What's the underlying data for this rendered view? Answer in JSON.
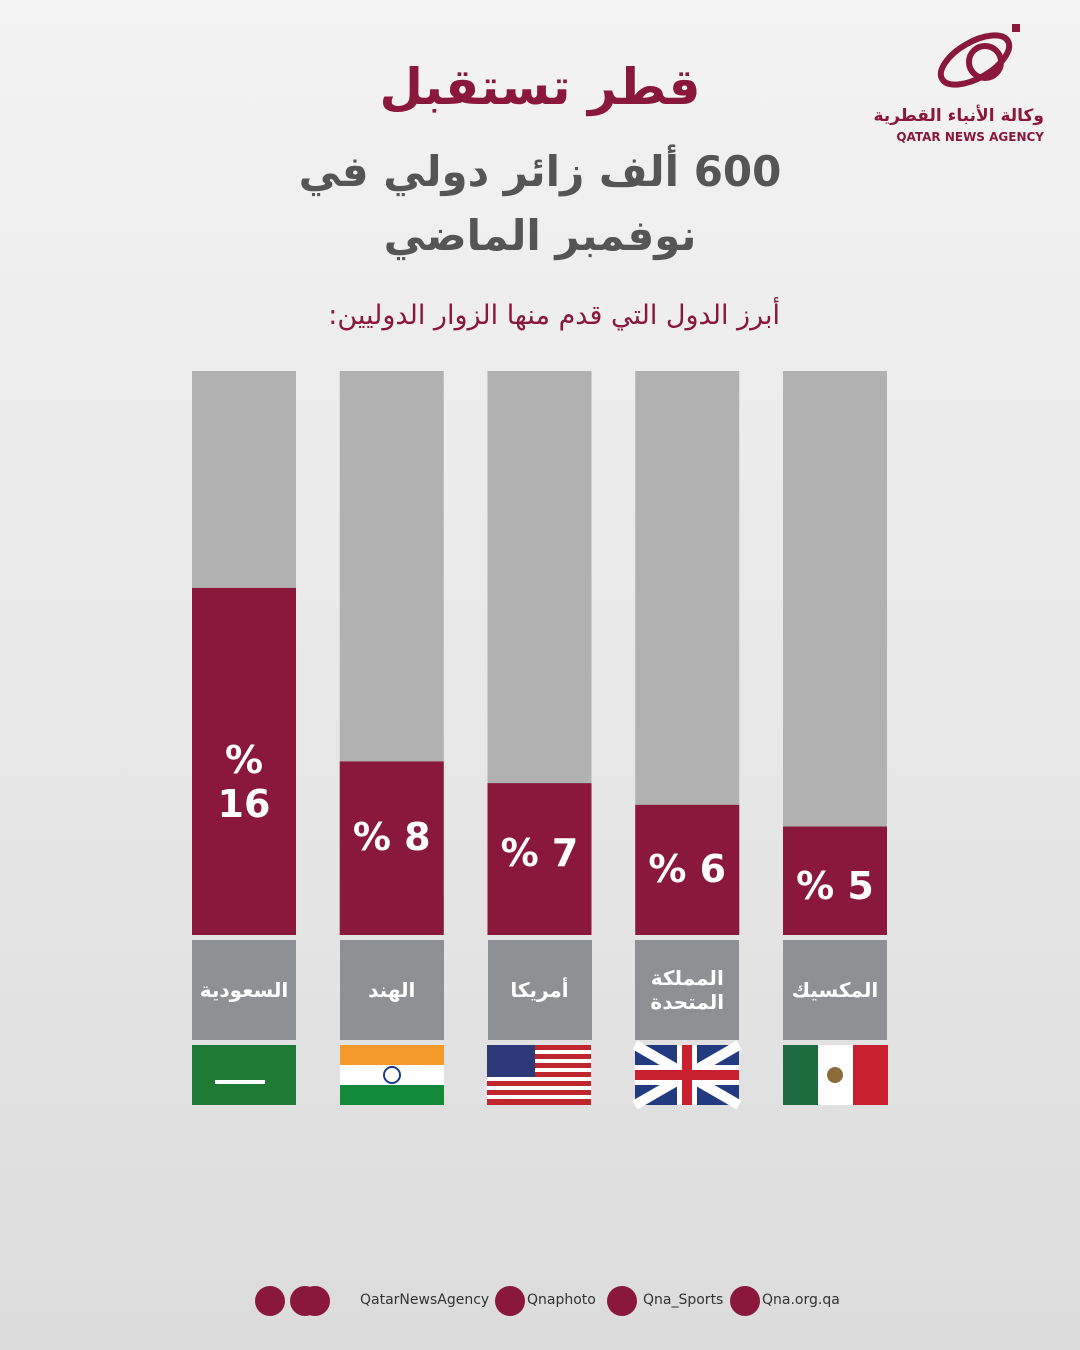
{
  "header": {
    "title": "قطر تستقبل",
    "subtitle": "600 ألف زائر دولي في نوفمبر الماضي",
    "section_title": "أبرز الدول التي قدم منها الزوار الدوليين:"
  },
  "logo": {
    "name_ar": "وكالة الأنباء القطرية",
    "name_en": "QATAR NEWS AGENCY"
  },
  "chart_data": {
    "type": "bar",
    "categories": [
      "السعودية",
      "الهند",
      "أمريكا",
      "المملكة المتحدة",
      "المكسيك"
    ],
    "values": [
      16,
      8,
      7,
      6,
      5
    ],
    "value_labels": [
      "% 16",
      "% 8",
      "% 7",
      "% 6",
      "% 5"
    ],
    "color": "#8a173c",
    "ylim": [
      0,
      26
    ]
  },
  "footer": {
    "handles": [
      "QatarNewsAgency",
      "Qnaphoto",
      "Qna_Sports",
      "Qna.org.qa"
    ]
  }
}
